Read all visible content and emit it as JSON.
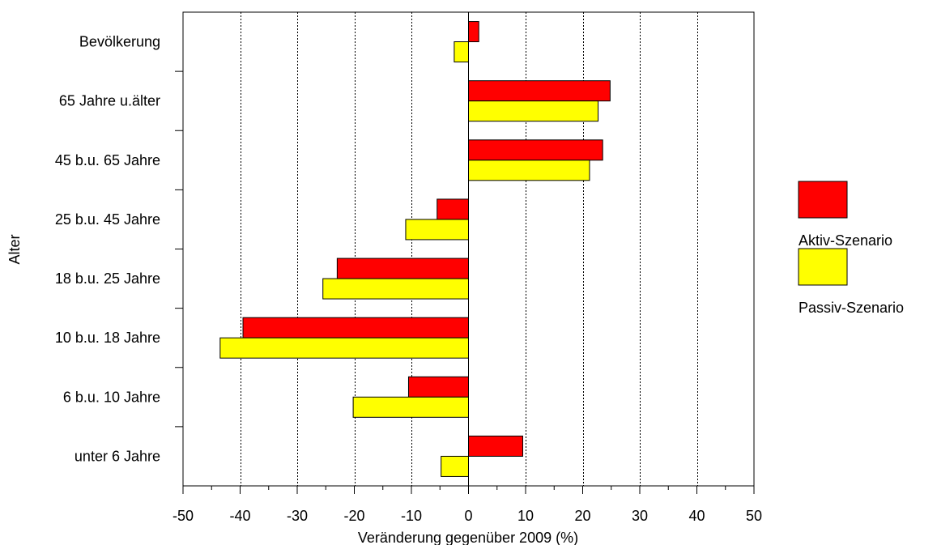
{
  "chart_data": {
    "type": "bar",
    "orientation": "horizontal",
    "title": "",
    "xlabel": "Veränderung gegenüber 2009 (%)",
    "ylabel": "Alter",
    "xlim": [
      -50,
      50
    ],
    "xticks": [
      "-50",
      "-40",
      "-30",
      "-20",
      "-10",
      "0",
      "10",
      "20",
      "30",
      "40",
      "50"
    ],
    "grid": "vertical dotted",
    "legend_position": "right",
    "categories": [
      "Bevölkerung",
      "65 Jahre u.älter",
      "45 b.u. 65 Jahre",
      "25 b.u. 45 Jahre",
      "18 b.u. 25 Jahre",
      "10 b.u. 18 Jahre",
      "6 b.u. 10 Jahre",
      "unter 6 Jahre"
    ],
    "series": [
      {
        "name": "Aktiv-Szenario",
        "color": "#ff0000",
        "values": [
          1.8,
          24.8,
          23.5,
          -5.5,
          -23.0,
          -39.5,
          -10.5,
          9.5
        ]
      },
      {
        "name": "Passiv-Szenario",
        "color": "#ffff00",
        "values": [
          -2.5,
          22.7,
          21.2,
          -11.0,
          -25.5,
          -43.5,
          -20.2,
          -4.8
        ]
      }
    ]
  }
}
